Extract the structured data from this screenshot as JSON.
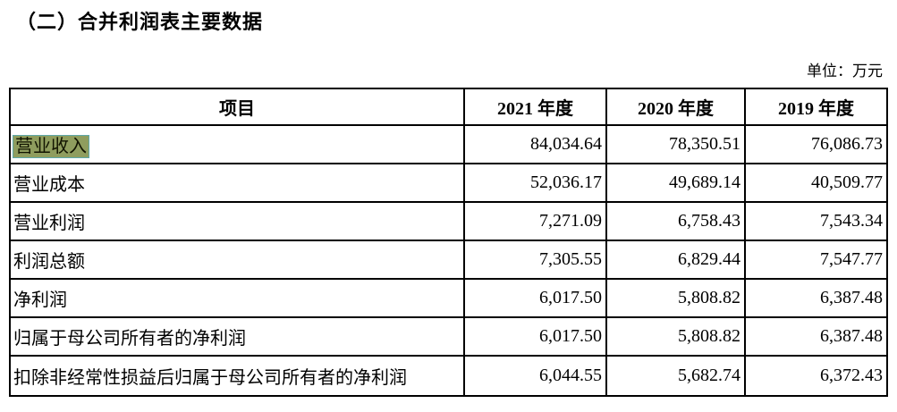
{
  "title": "（二）合并利润表主要数据",
  "unit_label": "单位：万元",
  "highlight": {
    "background": "#8F9D5E",
    "border": "#5FA8A8",
    "applies_to": "营业收入"
  },
  "table": {
    "columns": [
      "项目",
      "2021 年度",
      "2020 年度",
      "2019 年度"
    ],
    "rows": [
      {
        "item": "营业收入",
        "highlighted": true,
        "values": [
          "84,034.64",
          "78,350.51",
          "76,086.73"
        ]
      },
      {
        "item": "营业成本",
        "highlighted": false,
        "values": [
          "52,036.17",
          "49,689.14",
          "40,509.77"
        ]
      },
      {
        "item": "营业利润",
        "highlighted": false,
        "values": [
          "7,271.09",
          "6,758.43",
          "7,543.34"
        ]
      },
      {
        "item": "利润总额",
        "highlighted": false,
        "values": [
          "7,305.55",
          "6,829.44",
          "7,547.77"
        ]
      },
      {
        "item": "净利润",
        "highlighted": false,
        "values": [
          "6,017.50",
          "5,808.82",
          "6,387.48"
        ]
      },
      {
        "item": "归属于母公司所有者的净利润",
        "highlighted": false,
        "values": [
          "6,017.50",
          "5,808.82",
          "6,387.48"
        ]
      },
      {
        "item": "扣除非经常性损益后归属于母公司所有者的净利润",
        "highlighted": false,
        "values": [
          "6,044.55",
          "5,682.74",
          "6,372.43"
        ]
      }
    ]
  }
}
